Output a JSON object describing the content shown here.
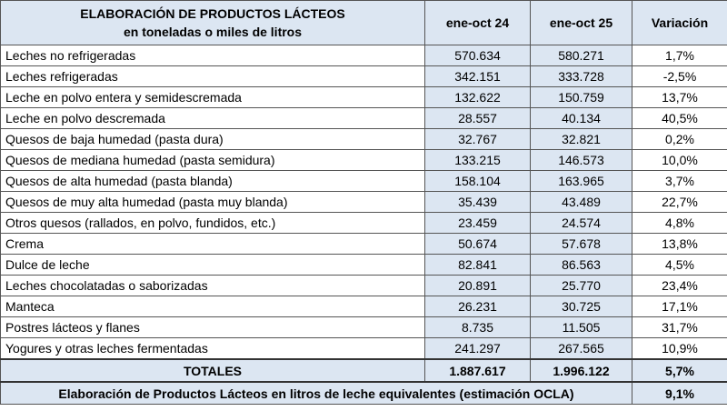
{
  "header": {
    "title_line1": "ELABORACIÓN DE PRODUCTOS LÁCTEOS",
    "title_line2": "en toneladas o miles de litros",
    "columns": [
      "ene-oct 24",
      "ene-oct 25",
      "Variación"
    ]
  },
  "table": {
    "rows": [
      [
        "Leches no refrigeradas",
        "570.634",
        "580.271",
        "1,7%"
      ],
      [
        "Leches refrigeradas",
        "342.151",
        "333.728",
        "-2,5%"
      ],
      [
        "Leche en polvo entera y semidescremada",
        "132.622",
        "150.759",
        "13,7%"
      ],
      [
        "Leche en polvo descremada",
        "28.557",
        "40.134",
        "40,5%"
      ],
      [
        "Quesos de baja humedad (pasta dura)",
        "32.767",
        "32.821",
        "0,2%"
      ],
      [
        "Quesos de mediana humedad (pasta semidura)",
        "133.215",
        "146.573",
        "10,0%"
      ],
      [
        "Quesos de alta humedad (pasta blanda)",
        "158.104",
        "163.965",
        "3,7%"
      ],
      [
        "Quesos de muy alta humedad (pasta muy blanda)",
        "35.439",
        "43.489",
        "22,7%"
      ],
      [
        "Otros quesos (rallados, en polvo, fundidos, etc.)",
        "23.459",
        "24.574",
        "4,8%"
      ],
      [
        "Crema",
        "50.674",
        "57.678",
        "13,8%"
      ],
      [
        "Dulce de leche",
        "82.841",
        "86.563",
        "4,5%"
      ],
      [
        "Leches chocolatadas o saborizadas",
        "20.891",
        "25.770",
        "23,4%"
      ],
      [
        "Manteca",
        "26.231",
        "30.725",
        "17,1%"
      ],
      [
        "Postres lácteos y flanes",
        "8.735",
        "11.505",
        "31,7%"
      ],
      [
        "Yogures y otras leches fermentadas",
        "241.297",
        "267.565",
        "10,9%"
      ]
    ]
  },
  "totals": {
    "label": "TOTALES",
    "values": [
      "1.887.617",
      "1.996.122",
      "5,7%"
    ]
  },
  "footer": {
    "label": "Elaboración de Productos Lácteos en litros de leche equivalentes (estimación OCLA)",
    "value": "9,1%"
  }
}
